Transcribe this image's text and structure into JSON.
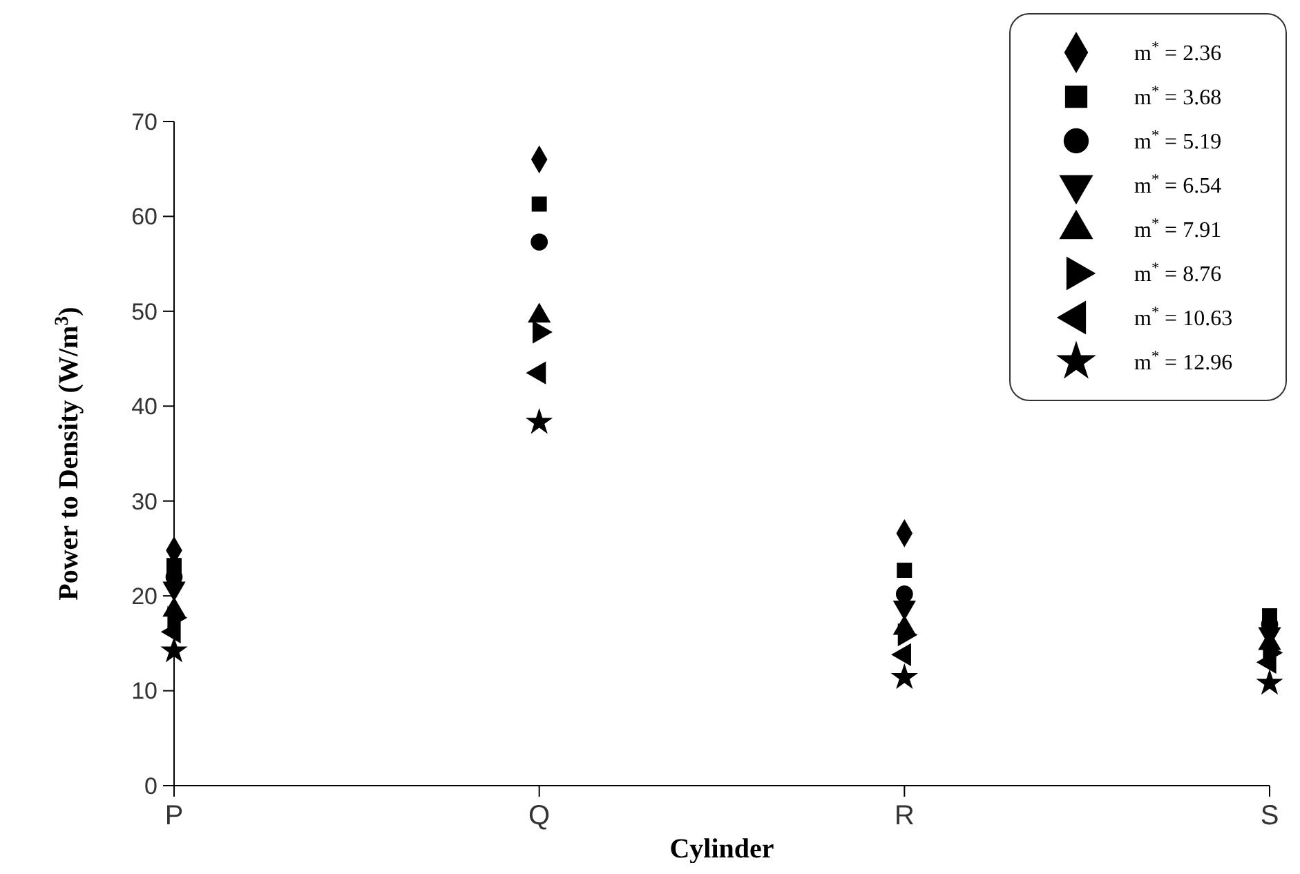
{
  "chart_data": {
    "type": "scatter",
    "xlabel": "Cylinder",
    "ylabel": "Power to Density (W/m$^{3}$)",
    "categories": [
      "P",
      "Q",
      "R",
      "S"
    ],
    "ylim": [
      0,
      70
    ],
    "yticks": [
      0,
      10,
      20,
      30,
      40,
      50,
      60,
      70
    ],
    "legend": "top right",
    "series": [
      {
        "name": "m$^{*}$ = 2.36",
        "color": "#000000",
        "marker": "diamond",
        "values": [
          24.8,
          66.0,
          26.6,
          null
        ]
      },
      {
        "name": "m$^{*}$ = 3.68",
        "color": "#000000",
        "marker": "square",
        "values": [
          23.2,
          61.3,
          22.7,
          17.9
        ]
      },
      {
        "name": "m$^{*}$ = 5.19",
        "color": "#000000",
        "marker": "circle",
        "values": [
          22.0,
          57.3,
          20.2,
          17.0
        ]
      },
      {
        "name": "m$^{*}$ = 6.54",
        "color": "#000000",
        "marker": "triangle-down",
        "values": [
          20.8,
          null,
          18.8,
          16.0
        ]
      },
      {
        "name": "m$^{*}$ = 7.91",
        "color": "#000000",
        "marker": "triangle",
        "values": [
          18.5,
          49.5,
          16.6,
          15.0
        ]
      },
      {
        "name": "m$^{*}$ = 8.76",
        "color": "#000000",
        "marker": "triangle-right",
        "values": [
          17.7,
          47.8,
          15.9,
          14.0
        ]
      },
      {
        "name": "m$^{*}$ = 10.63",
        "color": "#000000",
        "marker": "triangle-left",
        "values": [
          16.2,
          43.5,
          13.8,
          13.0
        ]
      },
      {
        "name": "m$^{*}$ = 12.96",
        "color": "#000000",
        "marker": "star",
        "values": [
          14.2,
          38.3,
          11.4,
          10.8
        ]
      }
    ]
  }
}
